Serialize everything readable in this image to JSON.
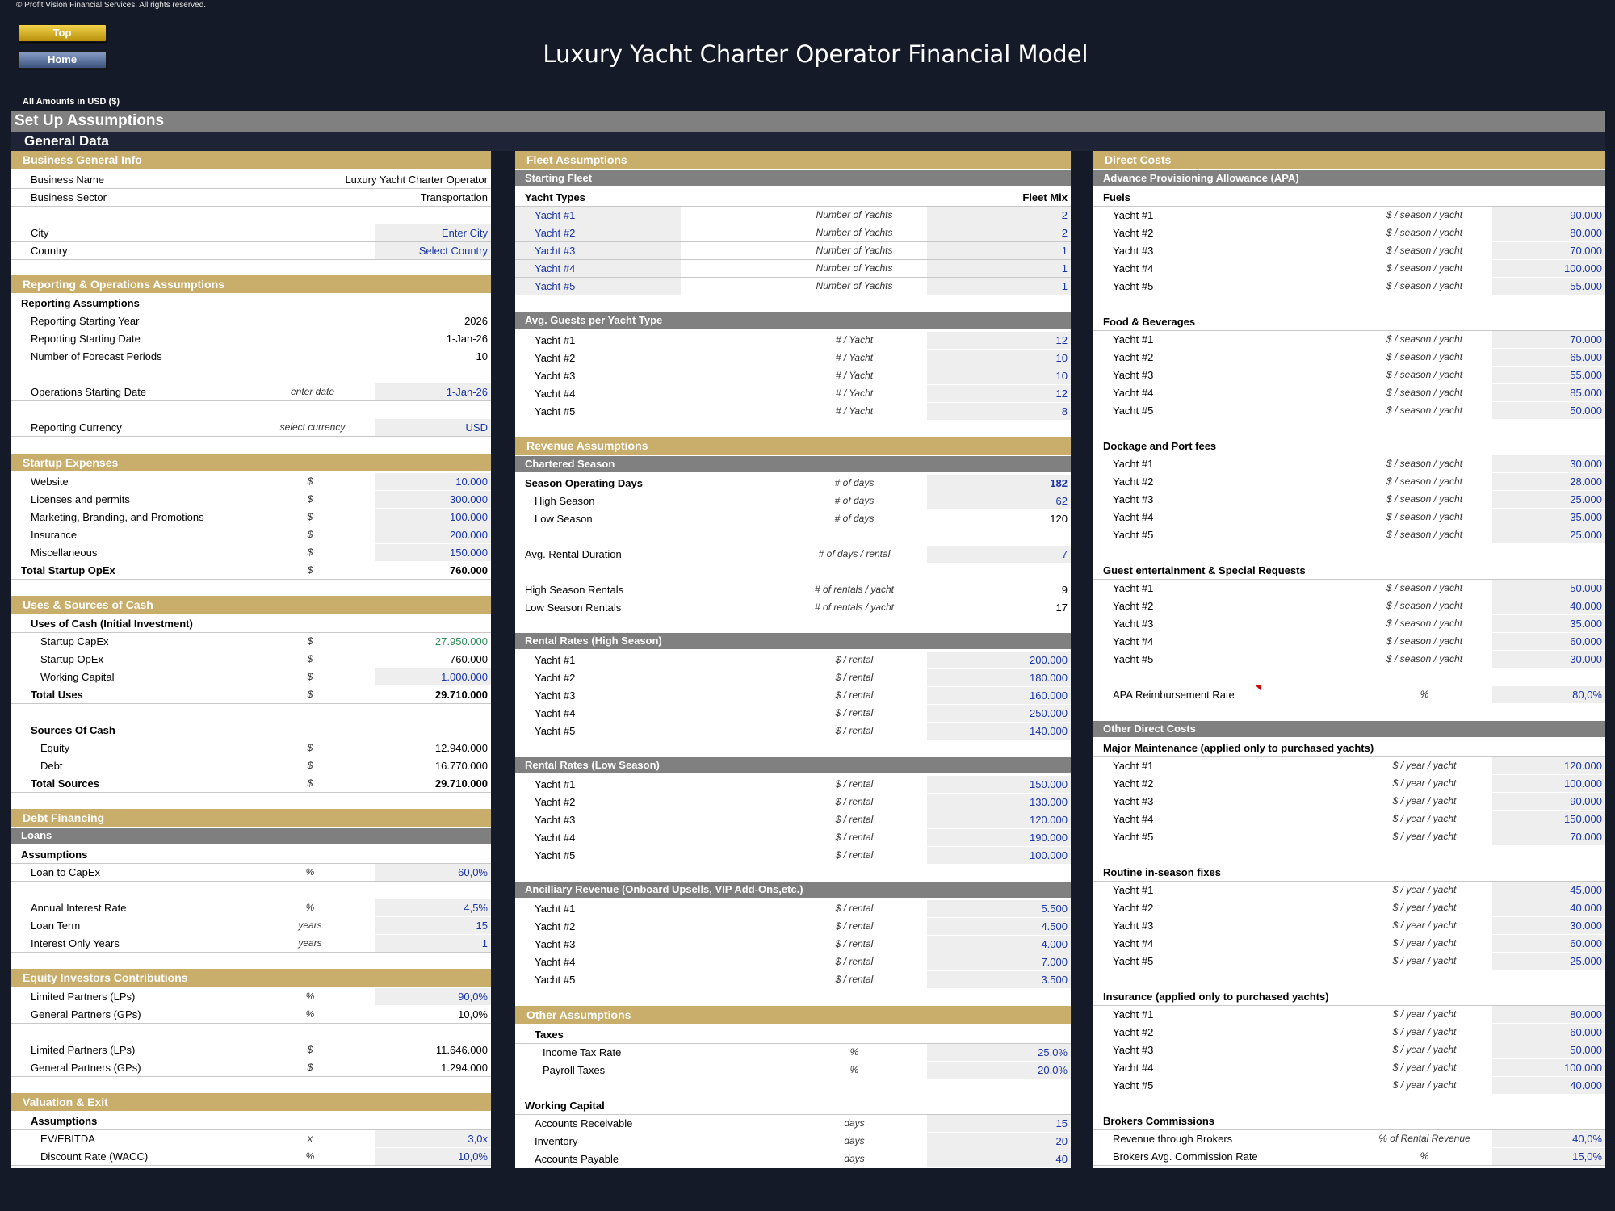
{
  "copyright": "© Profit Vision Financial Services. All rights reserved.",
  "nav": {
    "top": "Top",
    "home": "Home"
  },
  "title": "Luxury Yacht Charter Operator Financial Model",
  "currency_note": "All Amounts in  USD ($)",
  "setup_title": "Set Up Assumptions",
  "general_title": "General Data",
  "col1": {
    "business": {
      "title": "Business General Info",
      "name_label": "Business Name",
      "name_value": "Luxury Yacht Charter Operator",
      "sector_label": "Business Sector",
      "sector_value": "Transportation",
      "city_label": "City",
      "city_value": "Enter City",
      "country_label": "Country",
      "country_value": "Select Country"
    },
    "reporting": {
      "title": "Reporting & Operations Assumptions",
      "sub": "Reporting Assumptions",
      "rows": [
        {
          "label": "Reporting Starting Year",
          "unit": "",
          "value": "2026"
        },
        {
          "label": "Reporting Starting Date",
          "unit": "",
          "value": "1-Jan-26"
        },
        {
          "label": "Number of Forecast Periods",
          "unit": "",
          "value": "10"
        },
        {
          "label": "Operations Starting Date",
          "unit": "enter date",
          "value": "1-Jan-26"
        },
        {
          "label": "Reporting Currency",
          "unit": "select currency",
          "value": "USD"
        }
      ]
    },
    "startup": {
      "title": "Startup Expenses",
      "rows": [
        {
          "label": "Website",
          "unit": "$",
          "value": "10.000"
        },
        {
          "label": "Licenses and permits",
          "unit": "$",
          "value": "300.000"
        },
        {
          "label": "Marketing, Branding, and Promotions",
          "unit": "$",
          "value": "100.000"
        },
        {
          "label": "Insurance",
          "unit": "$",
          "value": "200.000"
        },
        {
          "label": "Miscellaneous",
          "unit": "$",
          "value": "150.000"
        }
      ],
      "total": {
        "label": "Total Startup OpEx",
        "unit": "$",
        "value": "760.000"
      }
    },
    "uses": {
      "title": "Uses & Sources of Cash",
      "uses_sub": "Uses of Cash (Initial Investment)",
      "rows": [
        {
          "label": "Startup CapEx",
          "unit": "$",
          "value": "27.950.000"
        },
        {
          "label": "Startup OpEx",
          "unit": "$",
          "value": "760.000"
        },
        {
          "label": "Working Capital",
          "unit": "$",
          "value": "1.000.000"
        }
      ],
      "total_uses": {
        "label": "Total Uses",
        "unit": "$",
        "value": "29.710.000"
      },
      "sources_sub": "Sources Of Cash",
      "sources": [
        {
          "label": "Equity",
          "unit": "$",
          "value": "12.940.000"
        },
        {
          "label": "Debt",
          "unit": "$",
          "value": "16.770.000"
        }
      ],
      "total_sources": {
        "label": "Total Sources",
        "unit": "$",
        "value": "29.710.000"
      }
    },
    "debt": {
      "title": "Debt Financing",
      "loans": "Loans",
      "sub": "Assumptions",
      "rows": [
        {
          "label": "Loan to CapEx",
          "unit": "%",
          "value": "60,0%"
        },
        {
          "label": "Annual Interest Rate",
          "unit": "%",
          "value": "4,5%"
        },
        {
          "label": "Loan Term",
          "unit": "years",
          "value": "15"
        },
        {
          "label": "Interest Only Years",
          "unit": "years",
          "value": "1"
        }
      ]
    },
    "equity": {
      "title": "Equity Investors Contributions",
      "rows": [
        {
          "label": "Limited Partners (LPs)",
          "unit": "%",
          "value": "90,0%"
        },
        {
          "label": "General Partners (GPs)",
          "unit": "%",
          "value": "10,0%"
        },
        {
          "label": "Limited Partners (LPs)",
          "unit": "$",
          "value": "11.646.000"
        },
        {
          "label": "General Partners (GPs)",
          "unit": "$",
          "value": "1.294.000"
        }
      ]
    },
    "valuation": {
      "title": "Valuation & Exit",
      "sub": "Assumptions",
      "rows": [
        {
          "label": "EV/EBITDA",
          "unit": "x",
          "value": "3,0x"
        },
        {
          "label": "Discount Rate (WACC)",
          "unit": "%",
          "value": "10,0%"
        }
      ]
    }
  },
  "col2": {
    "fleet": {
      "title": "Fleet Assumptions",
      "sub": "Starting Fleet",
      "hdr_left": "Yacht Types",
      "hdr_right": "Fleet Mix",
      "rows": [
        {
          "label": "Yacht #1",
          "unit": "Number of Yachts",
          "value": "2"
        },
        {
          "label": "Yacht #2",
          "unit": "Number of Yachts",
          "value": "2"
        },
        {
          "label": "Yacht #3",
          "unit": "Number of Yachts",
          "value": "1"
        },
        {
          "label": "Yacht #4",
          "unit": "Number of Yachts",
          "value": "1"
        },
        {
          "label": "Yacht #5",
          "unit": "Number of Yachts",
          "value": "1"
        }
      ]
    },
    "guests": {
      "sub": "Avg. Guests per Yacht Type",
      "rows": [
        {
          "label": "Yacht #1",
          "unit": "# / Yacht",
          "value": "12"
        },
        {
          "label": "Yacht #2",
          "unit": "# / Yacht",
          "value": "10"
        },
        {
          "label": "Yacht #3",
          "unit": "# / Yacht",
          "value": "10"
        },
        {
          "label": "Yacht #4",
          "unit": "# / Yacht",
          "value": "12"
        },
        {
          "label": "Yacht #5",
          "unit": "# / Yacht",
          "value": "8"
        }
      ]
    },
    "revenue": {
      "title": "Revenue Assumptions",
      "sub": "Chartered Season",
      "season": {
        "label": "Season Operating Days",
        "unit": "# of days",
        "value": "182"
      },
      "high": {
        "label": "High Season",
        "unit": "# of days",
        "value": "62"
      },
      "low": {
        "label": "Low Season",
        "unit": "# of days",
        "value": "120"
      },
      "duration": {
        "label": "Avg. Rental Duration",
        "unit": "# of days / rental",
        "value": "7"
      },
      "high_rentals": {
        "label": "High Season Rentals",
        "unit": "# of rentals / yacht",
        "value": "9"
      },
      "low_rentals": {
        "label": "Low Season Rentals",
        "unit": "# of rentals / yacht",
        "value": "17"
      }
    },
    "rates_high": {
      "sub": "Rental Rates (High Season)",
      "rows": [
        {
          "label": "Yacht #1",
          "unit": "$ / rental",
          "value": "200.000"
        },
        {
          "label": "Yacht #2",
          "unit": "$ / rental",
          "value": "180.000"
        },
        {
          "label": "Yacht #3",
          "unit": "$ / rental",
          "value": "160.000"
        },
        {
          "label": "Yacht #4",
          "unit": "$ / rental",
          "value": "250.000"
        },
        {
          "label": "Yacht #5",
          "unit": "$ / rental",
          "value": "140.000"
        }
      ]
    },
    "rates_low": {
      "sub": "Rental Rates (Low Season)",
      "rows": [
        {
          "label": "Yacht #1",
          "unit": "$ / rental",
          "value": "150.000"
        },
        {
          "label": "Yacht #2",
          "unit": "$ / rental",
          "value": "130.000"
        },
        {
          "label": "Yacht #3",
          "unit": "$ / rental",
          "value": "120.000"
        },
        {
          "label": "Yacht #4",
          "unit": "$ / rental",
          "value": "190.000"
        },
        {
          "label": "Yacht #5",
          "unit": "$ / rental",
          "value": "100.000"
        }
      ]
    },
    "ancillary": {
      "sub": "Ancilliary Revenue (Onboard Upsells, VIP Add-Ons,etc.)",
      "rows": [
        {
          "label": "Yacht #1",
          "unit": "$ / rental",
          "value": "5.500"
        },
        {
          "label": "Yacht #2",
          "unit": "$ / rental",
          "value": "4.500"
        },
        {
          "label": "Yacht #3",
          "unit": "$ / rental",
          "value": "4.000"
        },
        {
          "label": "Yacht #4",
          "unit": "$ / rental",
          "value": "7.000"
        },
        {
          "label": "Yacht #5",
          "unit": "$ / rental",
          "value": "3.500"
        }
      ]
    },
    "other": {
      "title": "Other Assumptions",
      "taxes": "Taxes",
      "tax_rows": [
        {
          "label": "Income Tax Rate",
          "unit": "%",
          "value": "25,0%"
        },
        {
          "label": "Payroll Taxes",
          "unit": "%",
          "value": "20,0%"
        }
      ],
      "wc": "Working Capital",
      "wc_rows": [
        {
          "label": "Accounts Receivable",
          "unit": "days",
          "value": "15"
        },
        {
          "label": "Inventory",
          "unit": "days",
          "value": "20"
        },
        {
          "label": "Accounts Payable",
          "unit": "days",
          "value": "40"
        }
      ]
    }
  },
  "col3": {
    "title": "Direct Costs",
    "apa_sub": "Advance Provisioning Allowance (APA)",
    "fuels": {
      "title": "Fuels",
      "rows": [
        {
          "label": "Yacht #1",
          "unit": "$ / season / yacht",
          "value": "90.000"
        },
        {
          "label": "Yacht #2",
          "unit": "$ / season / yacht",
          "value": "80.000"
        },
        {
          "label": "Yacht #3",
          "unit": "$ / season / yacht",
          "value": "70.000"
        },
        {
          "label": "Yacht #4",
          "unit": "$ / season / yacht",
          "value": "100.000"
        },
        {
          "label": "Yacht #5",
          "unit": "$ / season / yacht",
          "value": "55.000"
        }
      ]
    },
    "food": {
      "title": "Food & Beverages",
      "rows": [
        {
          "label": "Yacht #1",
          "unit": "$ / season / yacht",
          "value": "70.000"
        },
        {
          "label": "Yacht #2",
          "unit": "$ / season / yacht",
          "value": "65.000"
        },
        {
          "label": "Yacht #3",
          "unit": "$ / season / yacht",
          "value": "55.000"
        },
        {
          "label": "Yacht #4",
          "unit": "$ / season / yacht",
          "value": "85.000"
        },
        {
          "label": "Yacht #5",
          "unit": "$ / season / yacht",
          "value": "50.000"
        }
      ]
    },
    "dock": {
      "title": "Dockage and Port fees",
      "rows": [
        {
          "label": "Yacht #1",
          "unit": "$ / season / yacht",
          "value": "30.000"
        },
        {
          "label": "Yacht #2",
          "unit": "$ / season / yacht",
          "value": "28.000"
        },
        {
          "label": "Yacht #3",
          "unit": "$ / season / yacht",
          "value": "25.000"
        },
        {
          "label": "Yacht #4",
          "unit": "$ / season / yacht",
          "value": "35.000"
        },
        {
          "label": "Yacht #5",
          "unit": "$ / season / yacht",
          "value": "25.000"
        }
      ]
    },
    "guest": {
      "title": "Guest entertainment & Special Requests",
      "rows": [
        {
          "label": "Yacht #1",
          "unit": "$ / season / yacht",
          "value": "50.000"
        },
        {
          "label": "Yacht #2",
          "unit": "$ / season / yacht",
          "value": "40.000"
        },
        {
          "label": "Yacht #3",
          "unit": "$ / season / yacht",
          "value": "35.000"
        },
        {
          "label": "Yacht #4",
          "unit": "$ / season / yacht",
          "value": "60.000"
        },
        {
          "label": "Yacht #5",
          "unit": "$ / season / yacht",
          "value": "30.000"
        }
      ]
    },
    "apa_reimb": {
      "label": "APA Reimbursement Rate",
      "unit": "%",
      "value": "80,0%"
    },
    "other_sub": "Other Direct Costs",
    "maint": {
      "title": "Major Maintenance (applied only to purchased yachts)",
      "rows": [
        {
          "label": "Yacht #1",
          "unit": "$ / year / yacht",
          "value": "120.000"
        },
        {
          "label": "Yacht #2",
          "unit": "$ / year / yacht",
          "value": "100.000"
        },
        {
          "label": "Yacht #3",
          "unit": "$ / year / yacht",
          "value": "90.000"
        },
        {
          "label": "Yacht #4",
          "unit": "$ / year / yacht",
          "value": "150.000"
        },
        {
          "label": "Yacht #5",
          "unit": "$ / year / yacht",
          "value": "70.000"
        }
      ]
    },
    "routine": {
      "title": "Routine in-season fixes",
      "rows": [
        {
          "label": "Yacht #1",
          "unit": "$ / year / yacht",
          "value": "45.000"
        },
        {
          "label": "Yacht #2",
          "unit": "$ / year / yacht",
          "value": "40.000"
        },
        {
          "label": "Yacht #3",
          "unit": "$ / year / yacht",
          "value": "30.000"
        },
        {
          "label": "Yacht #4",
          "unit": "$ / year / yacht",
          "value": "60.000"
        },
        {
          "label": "Yacht #5",
          "unit": "$ / year / yacht",
          "value": "25.000"
        }
      ]
    },
    "insurance": {
      "title": "Insurance  (applied only to purchased yachts)",
      "rows": [
        {
          "label": "Yacht #1",
          "unit": "$ / year / yacht",
          "value": "80.000"
        },
        {
          "label": "Yacht #2",
          "unit": "$ / year / yacht",
          "value": "60.000"
        },
        {
          "label": "Yacht #3",
          "unit": "$ / year / yacht",
          "value": "50.000"
        },
        {
          "label": "Yacht #4",
          "unit": "$ / year / yacht",
          "value": "100.000"
        },
        {
          "label": "Yacht #5",
          "unit": "$ / year / yacht",
          "value": "40.000"
        }
      ]
    },
    "brokers": {
      "title": "Brokers Commissions",
      "rows": [
        {
          "label": "Revenue through Brokers",
          "unit": "% of Rental Revenue",
          "value": "40,0%"
        },
        {
          "label": "Brokers Avg. Commission Rate",
          "unit": "%",
          "value": "15,0%"
        }
      ]
    }
  }
}
